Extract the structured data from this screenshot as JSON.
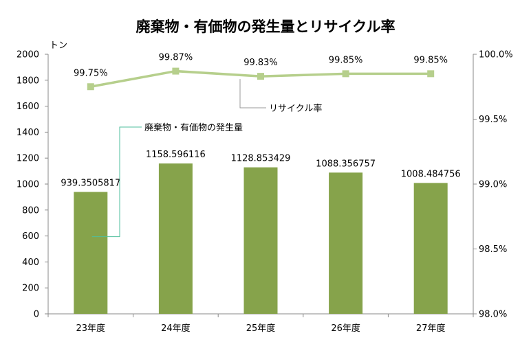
{
  "chart_data": {
    "type": "bar",
    "title": "廃棄物・有価物の発生量とリサイクル率",
    "categories": [
      "23年度",
      "24年度",
      "25年度",
      "26年度",
      "27年度"
    ],
    "y_left": {
      "label": "トン",
      "range": [
        0,
        2000
      ],
      "ticks": [
        "0",
        "200",
        "400",
        "600",
        "800",
        "1000",
        "1200",
        "1400",
        "1600",
        "1800",
        "2000"
      ]
    },
    "y_right": {
      "range": [
        98.0,
        100.0
      ],
      "ticks": [
        "98.0%",
        "98.5%",
        "99.0%",
        "99.5%",
        "100.0%"
      ]
    },
    "series": [
      {
        "name": "廃棄物・有価物の発生量",
        "type": "bar",
        "axis": "left",
        "color": "#86a34b",
        "values": [
          939.3505817,
          1158.596116,
          1128.853429,
          1088.356757,
          1008.484756
        ],
        "labels": [
          "939.3505817",
          "1158.596116",
          "1128.853429",
          "1088.356757",
          "1008.484756"
        ]
      },
      {
        "name": "リサイクル率",
        "type": "line",
        "axis": "right",
        "color": "#b6cf8c",
        "values": [
          99.75,
          99.87,
          99.83,
          99.85,
          99.85
        ],
        "labels": [
          "99.75%",
          "99.87%",
          "99.83%",
          "99.85%",
          "99.85%"
        ]
      }
    ],
    "grid": false,
    "legend": "callouts"
  }
}
